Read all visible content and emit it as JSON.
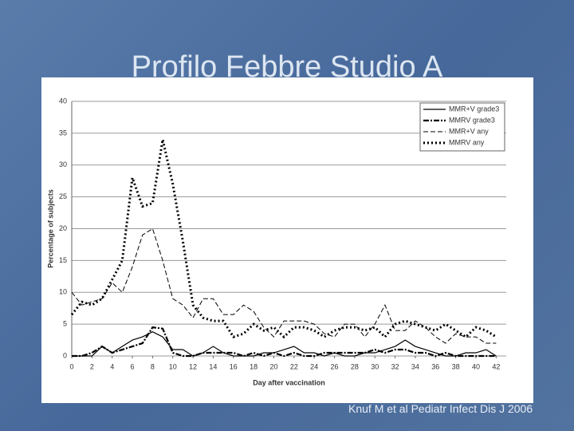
{
  "slide": {
    "title": "Profilo Febbre Studio A",
    "citation": "Knuf M et al Pediatr Infect Dis J 2006"
  },
  "chart_data": {
    "type": "line",
    "x_label": "Day after vaccination",
    "y_label": "Percentage of subjects",
    "x": [
      0,
      1,
      2,
      3,
      4,
      5,
      6,
      7,
      8,
      9,
      10,
      11,
      12,
      13,
      14,
      15,
      16,
      17,
      18,
      19,
      20,
      21,
      22,
      23,
      24,
      25,
      26,
      27,
      28,
      29,
      30,
      31,
      32,
      33,
      34,
      35,
      36,
      37,
      38,
      39,
      40,
      41,
      42
    ],
    "xlim": [
      0,
      43
    ],
    "xticks": [
      0,
      2,
      4,
      6,
      8,
      10,
      12,
      14,
      16,
      18,
      20,
      22,
      24,
      26,
      28,
      30,
      32,
      34,
      36,
      38,
      40,
      42
    ],
    "ylim": [
      0,
      40
    ],
    "yticks": [
      0,
      5,
      10,
      15,
      20,
      25,
      30,
      35,
      40
    ],
    "grid": true,
    "legend": "top-right",
    "series": [
      {
        "name": "MMR+V grade3",
        "color": "#000000",
        "values": [
          0,
          0,
          0,
          1.5,
          0.5,
          1.5,
          2.5,
          3,
          3.8,
          3,
          1,
          1,
          0,
          0.5,
          1.5,
          0.5,
          0,
          0,
          0,
          0.5,
          0.5,
          1,
          1.5,
          0.5,
          0.5,
          0,
          0.5,
          0,
          0,
          0.5,
          0.5,
          1,
          1.5,
          2.5,
          1.5,
          1,
          0.5,
          0,
          0,
          0.5,
          0.5,
          1,
          0
        ]
      },
      {
        "name": "MMRV grade3",
        "color": "#000000",
        "values": [
          0,
          0,
          0.5,
          1.5,
          0.5,
          1,
          1.5,
          2,
          4.5,
          4.3,
          0.5,
          0,
          0,
          0.5,
          0.5,
          0.5,
          0.5,
          0,
          0.5,
          0,
          0.5,
          0,
          0.5,
          0,
          0,
          0.5,
          0.5,
          0.5,
          0.5,
          0.5,
          1,
          0.5,
          1,
          1,
          0.5,
          0.5,
          0,
          0.5,
          0,
          0,
          0,
          0,
          0
        ]
      },
      {
        "name": "MMR+V any",
        "color": "#000000",
        "values": [
          10,
          8,
          8.5,
          9,
          11.5,
          10,
          14,
          19,
          20,
          15,
          9,
          8,
          6,
          9,
          9,
          6.5,
          6.5,
          8,
          7,
          4.5,
          3,
          5.5,
          5.5,
          5.5,
          5,
          3.5,
          3,
          5,
          5,
          3,
          5,
          8,
          4,
          4,
          5.5,
          4.5,
          3,
          2,
          3.5,
          3,
          3,
          2,
          2
        ]
      },
      {
        "name": "MMRV any",
        "color": "#000000",
        "values": [
          6.5,
          8.5,
          8,
          9,
          12,
          15,
          28,
          23.5,
          24,
          34,
          27,
          18,
          8,
          6,
          5.5,
          5.5,
          3,
          3.5,
          5,
          4,
          4.5,
          3,
          4.5,
          4.5,
          4,
          3,
          4,
          4.5,
          4.5,
          4,
          4.5,
          3,
          5,
          5.5,
          5,
          4.5,
          4,
          5,
          4,
          3,
          4.5,
          4,
          3
        ]
      }
    ]
  }
}
